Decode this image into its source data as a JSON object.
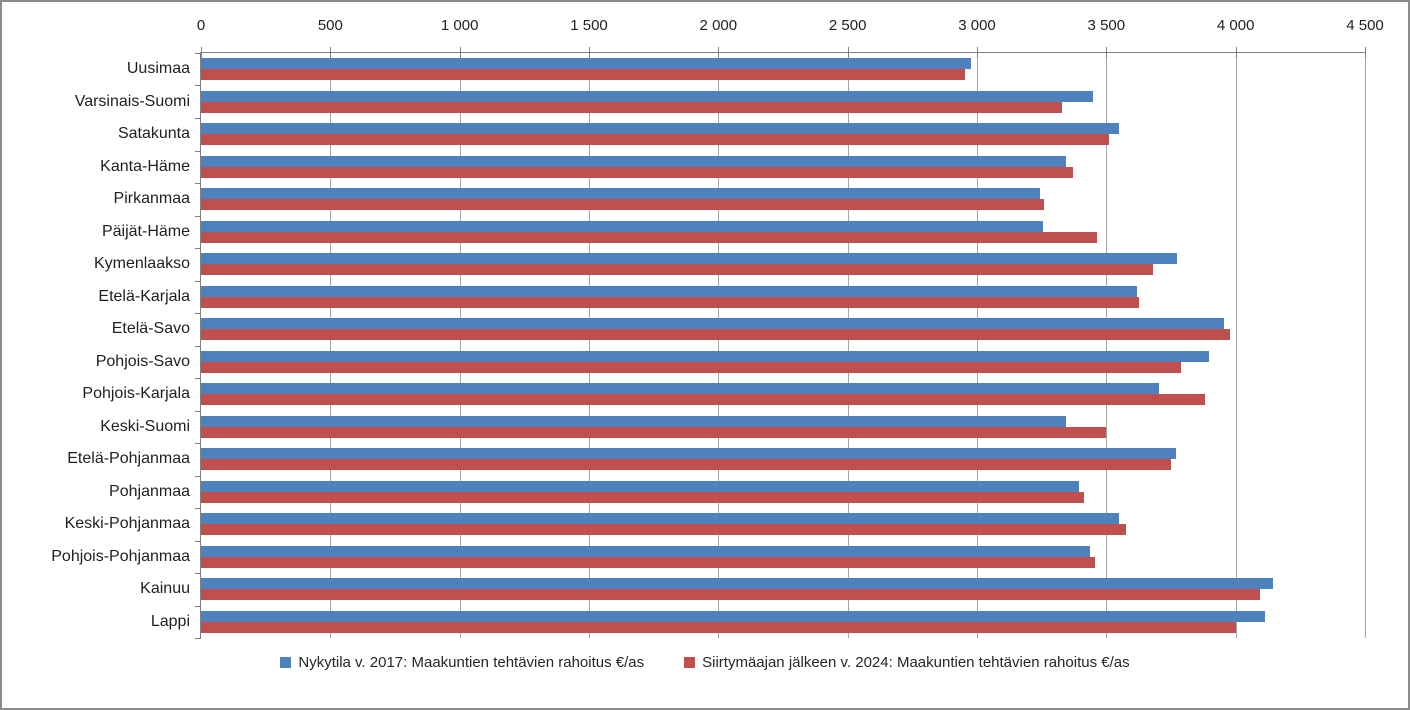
{
  "chart_data": {
    "type": "bar",
    "orientation": "horizontal",
    "title": "",
    "xlabel": "",
    "ylabel": "",
    "xlim": [
      0,
      4500
    ],
    "grid": true,
    "legend_position": "bottom",
    "x_ticks": [
      {
        "value": 0,
        "label": "0"
      },
      {
        "value": 500,
        "label": "500"
      },
      {
        "value": 1000,
        "label": "1 000"
      },
      {
        "value": 1500,
        "label": "1 500"
      },
      {
        "value": 2000,
        "label": "2 000"
      },
      {
        "value": 2500,
        "label": "2 500"
      },
      {
        "value": 3000,
        "label": "3 000"
      },
      {
        "value": 3500,
        "label": "3 500"
      },
      {
        "value": 4000,
        "label": "4 000"
      },
      {
        "value": 4500,
        "label": "4 500"
      }
    ],
    "categories": [
      "Uusimaa",
      "Varsinais-Suomi",
      "Satakunta",
      "Kanta-Häme",
      "Pirkanmaa",
      "Päijät-Häme",
      "Kymenlaakso",
      "Etelä-Karjala",
      "Etelä-Savo",
      "Pohjois-Savo",
      "Pohjois-Karjala",
      "Keski-Suomi",
      "Etelä-Pohjanmaa",
      "Pohjanmaa",
      "Keski-Pohjanmaa",
      "Pohjois-Pohjanmaa",
      "Kainuu",
      "Lappi"
    ],
    "series": [
      {
        "name": "Nykytila v. 2017: Maakuntien tehtävien rahoitus €/as",
        "color": "#4F81BD",
        "values": [
          2975,
          3450,
          3550,
          3345,
          3245,
          3255,
          3775,
          3620,
          3955,
          3895,
          3705,
          3345,
          3770,
          3395,
          3550,
          3435,
          4145,
          4115
        ]
      },
      {
        "name": "Siirtymäajan jälkeen v. 2024: Maakuntien tehtävien rahoitus €/as",
        "color": "#C0504D",
        "values": [
          2955,
          3330,
          3510,
          3370,
          3260,
          3465,
          3680,
          3625,
          3980,
          3790,
          3880,
          3500,
          3750,
          3415,
          3575,
          3455,
          4095,
          4000
        ]
      }
    ]
  },
  "colors": {
    "axis_line": "#808080",
    "gridline": "#A6A6A6",
    "text": "#1f1f1f",
    "frame_border": "#8C8C8C",
    "background": "#FFFFFF"
  }
}
